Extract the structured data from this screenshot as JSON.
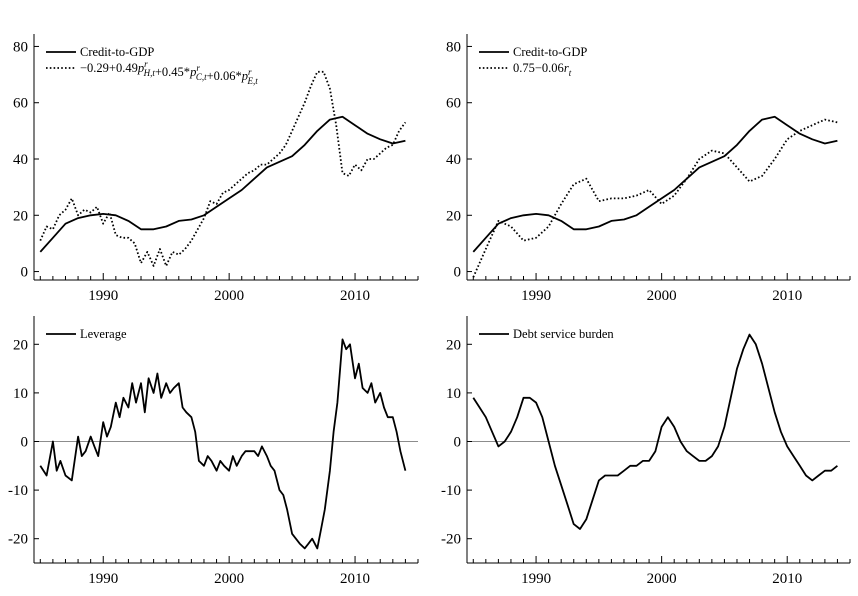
{
  "chart_data": [
    {
      "type": "line",
      "xlim": [
        1984.5,
        2015
      ],
      "ylim": [
        -3,
        83
      ],
      "xticks": [
        1990,
        2000,
        2010
      ],
      "yticks": [
        0,
        20,
        40,
        60,
        80
      ],
      "zero_line": false,
      "legend": "top-left",
      "series": [
        {
          "name": "Credit-to-GDP",
          "style": "solid",
          "x": [
            1985,
            1986,
            1987,
            1988,
            1989,
            1990,
            1991,
            1992,
            1993,
            1994,
            1995,
            1996,
            1997,
            1998,
            1999,
            2000,
            2001,
            2002,
            2003,
            2004,
            2005,
            2006,
            2007,
            2008,
            2009,
            2010,
            2011,
            2012,
            2013,
            2014
          ],
          "y": [
            7,
            12,
            17,
            19,
            20,
            20.5,
            20,
            18,
            15,
            15,
            16,
            18,
            18.5,
            20,
            23,
            26,
            29,
            33,
            37,
            39,
            41,
            45,
            50,
            54,
            55,
            52,
            49,
            47,
            45.5,
            46.5
          ]
        },
        {
          "name": "−0.29+0.49p_{H,t}^{r}+0.45*p_{C,t}^{r}+0.06*p_{E,t}^{r}",
          "style": "dotted",
          "x": [
            1985,
            1985.5,
            1986,
            1986.5,
            1987,
            1987.5,
            1988,
            1988.5,
            1989,
            1989.5,
            1990,
            1990.5,
            1991,
            1991.5,
            1992,
            1992.5,
            1993,
            1993.5,
            1994,
            1994.5,
            1995,
            1995.5,
            1996,
            1996.5,
            1997,
            1997.5,
            1998,
            1998.5,
            1999,
            1999.5,
            2000,
            2000.5,
            2001,
            2001.5,
            2002,
            2002.5,
            2003,
            2003.5,
            2004,
            2004.5,
            2005,
            2005.5,
            2006,
            2006.5,
            2007,
            2007.5,
            2008,
            2008.5,
            2009,
            2009.5,
            2010,
            2010.5,
            2011,
            2011.5,
            2012,
            2012.5,
            2013,
            2013.5,
            2014
          ],
          "y": [
            11,
            16,
            15,
            20,
            22,
            26,
            20,
            22,
            21,
            23,
            17,
            21,
            13,
            12,
            12,
            10,
            3,
            7,
            2,
            8,
            2,
            7,
            6,
            8,
            11,
            15,
            19,
            25,
            24,
            28,
            29,
            31,
            33,
            35,
            36,
            38,
            38,
            40,
            42,
            45,
            50,
            55,
            60,
            66,
            71,
            71,
            65,
            52,
            35,
            34,
            38,
            36,
            40,
            40,
            42,
            44,
            45,
            50,
            53
          ]
        }
      ]
    },
    {
      "type": "line",
      "xlim": [
        1984.5,
        2015
      ],
      "ylim": [
        -3,
        83
      ],
      "xticks": [
        1990,
        2000,
        2010
      ],
      "yticks": [
        0,
        20,
        40,
        60,
        80
      ],
      "zero_line": false,
      "legend": "top-left",
      "series": [
        {
          "name": "Credit-to-GDP",
          "style": "solid",
          "x": [
            1985,
            1986,
            1987,
            1988,
            1989,
            1990,
            1991,
            1992,
            1993,
            1994,
            1995,
            1996,
            1997,
            1998,
            1999,
            2000,
            2001,
            2002,
            2003,
            2004,
            2005,
            2006,
            2007,
            2008,
            2009,
            2010,
            2011,
            2012,
            2013,
            2014
          ],
          "y": [
            7,
            12,
            17,
            19,
            20,
            20.5,
            20,
            18,
            15,
            15,
            16,
            18,
            18.5,
            20,
            23,
            26,
            29,
            33,
            37,
            39,
            41,
            45,
            50,
            54,
            55,
            52,
            49,
            47,
            45.5,
            46.5
          ]
        },
        {
          "name": "0.75−0.06r_t",
          "style": "dotted",
          "x": [
            1985,
            1986,
            1987,
            1988,
            1989,
            1990,
            1991,
            1992,
            1993,
            1994,
            1995,
            1996,
            1997,
            1998,
            1999,
            2000,
            2001,
            2002,
            2003,
            2004,
            2005,
            2006,
            2007,
            2008,
            2009,
            2010,
            2011,
            2012,
            2013,
            2014
          ],
          "y": [
            -2,
            8,
            18,
            16,
            11,
            12,
            16,
            24,
            31,
            33,
            25,
            26,
            26,
            27,
            29,
            24,
            27,
            33,
            40,
            43,
            42,
            37,
            32,
            34,
            40,
            47,
            50,
            52,
            54,
            53
          ]
        }
      ]
    },
    {
      "type": "line",
      "xlim": [
        1984.5,
        2015
      ],
      "ylim": [
        -25,
        25
      ],
      "xticks": [
        1990,
        2000,
        2010
      ],
      "yticks": [
        -20,
        -10,
        0,
        10,
        20
      ],
      "zero_line": true,
      "legend": "top-left",
      "series": [
        {
          "name": "Leverage",
          "style": "solid",
          "x": [
            1985,
            1985.5,
            1986,
            1986.3,
            1986.6,
            1987,
            1987.5,
            1988,
            1988.3,
            1988.6,
            1989,
            1989.3,
            1989.6,
            1990,
            1990.3,
            1990.6,
            1991,
            1991.3,
            1991.6,
            1992,
            1992.3,
            1992.6,
            1993,
            1993.3,
            1993.6,
            1994,
            1994.3,
            1994.6,
            1995,
            1995.3,
            1995.6,
            1996,
            1996.3,
            1996.6,
            1997,
            1997.3,
            1997.6,
            1998,
            1998.3,
            1998.6,
            1999,
            1999.3,
            1999.6,
            2000,
            2000.3,
            2000.6,
            2001,
            2001.3,
            2001.6,
            2002,
            2002.3,
            2002.6,
            2003,
            2003.3,
            2003.6,
            2004,
            2004.3,
            2004.6,
            2005,
            2005.3,
            2005.6,
            2006,
            2006.3,
            2006.6,
            2007,
            2007.3,
            2007.6,
            2008,
            2008.3,
            2008.6,
            2009,
            2009.3,
            2009.6,
            2010,
            2010.3,
            2010.6,
            2011,
            2011.3,
            2011.6,
            2012,
            2012.3,
            2012.6,
            2013,
            2013.3,
            2013.6,
            2014
          ],
          "y": [
            -5,
            -7,
            0,
            -6,
            -4,
            -7,
            -8,
            1,
            -3,
            -2,
            1,
            -1,
            -3,
            4,
            1,
            3,
            8,
            5,
            9,
            7,
            12,
            8,
            12,
            6,
            13,
            10,
            14,
            9,
            12,
            10,
            11,
            12,
            7,
            6,
            5,
            2,
            -4,
            -5,
            -3,
            -4,
            -6,
            -4,
            -5,
            -6,
            -3,
            -5,
            -3,
            -2,
            -2,
            -2,
            -3,
            -1,
            -3,
            -5,
            -6,
            -10,
            -11,
            -14,
            -19,
            -20,
            -21,
            -22,
            -21,
            -20,
            -22,
            -18,
            -14,
            -6,
            2,
            8,
            21,
            19,
            20,
            13,
            16,
            11,
            10,
            12,
            8,
            10,
            7,
            5,
            5,
            2,
            -2,
            -6
          ]
        }
      ]
    },
    {
      "type": "line",
      "xlim": [
        1984.5,
        2015
      ],
      "ylim": [
        -25,
        25
      ],
      "xticks": [
        1990,
        2000,
        2010
      ],
      "yticks": [
        -20,
        -10,
        0,
        10,
        20
      ],
      "zero_line": true,
      "legend": "top-left",
      "series": [
        {
          "name": "Debt service burden",
          "style": "solid",
          "x": [
            1985,
            1985.5,
            1986,
            1986.5,
            1987,
            1987.5,
            1988,
            1988.5,
            1989,
            1989.5,
            1990,
            1990.5,
            1991,
            1991.5,
            1992,
            1992.5,
            1993,
            1993.5,
            1994,
            1994.5,
            1995,
            1995.5,
            1996,
            1996.5,
            1997,
            1997.5,
            1998,
            1998.5,
            1999,
            1999.5,
            2000,
            2000.5,
            2001,
            2001.5,
            2002,
            2002.5,
            2003,
            2003.5,
            2004,
            2004.5,
            2005,
            2005.5,
            2006,
            2006.5,
            2007,
            2007.5,
            2008,
            2008.5,
            2009,
            2009.5,
            2010,
            2010.5,
            2011,
            2011.5,
            2012,
            2012.5,
            2013,
            2013.5,
            2014
          ],
          "y": [
            9,
            7,
            5,
            2,
            -1,
            0,
            2,
            5,
            9,
            9,
            8,
            5,
            0,
            -5,
            -9,
            -13,
            -17,
            -18,
            -16,
            -12,
            -8,
            -7,
            -7,
            -7,
            -6,
            -5,
            -5,
            -4,
            -4,
            -2,
            3,
            5,
            3,
            0,
            -2,
            -3,
            -4,
            -4,
            -3,
            -1,
            3,
            9,
            15,
            19,
            22,
            20,
            16,
            11,
            6,
            2,
            -1,
            -3,
            -5,
            -7,
            -8,
            -7,
            -6,
            -6,
            -5
          ]
        }
      ]
    }
  ]
}
